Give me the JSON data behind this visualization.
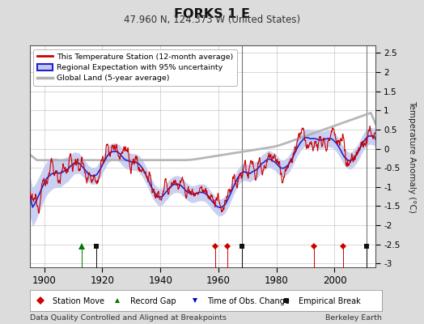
{
  "title": "FORKS 1 E",
  "subtitle": "47.960 N, 124.373 W (United States)",
  "ylabel": "Temperature Anomaly (°C)",
  "xlabel_note": "Data Quality Controlled and Aligned at Breakpoints",
  "credit": "Berkeley Earth",
  "xlim": [
    1895,
    2014
  ],
  "ylim": [
    -3.1,
    2.7
  ],
  "yticks": [
    -3,
    -2.5,
    -2,
    -1.5,
    -1,
    -0.5,
    0,
    0.5,
    1,
    1.5,
    2,
    2.5
  ],
  "xticks": [
    1900,
    1920,
    1940,
    1960,
    1980,
    2000
  ],
  "bg_color": "#dcdcdc",
  "plot_bg_color": "#ffffff",
  "grid_color": "#b0b0b0",
  "station_color": "#cc0000",
  "regional_color": "#2222cc",
  "uncertainty_color": "#c0c8f0",
  "global_color": "#b0b0b0",
  "station_move_color": "#cc0000",
  "record_gap_color": "#007700",
  "tobs_color": "#0000cc",
  "break_color": "#111111",
  "legend_station": "This Temperature Station (12-month average)",
  "legend_regional": "Regional Expectation with 95% uncertainty",
  "legend_global": "Global Land (5-year average)",
  "legend_station_move": "Station Move",
  "legend_record_gap": "Record Gap",
  "legend_tobs": "Time of Obs. Change",
  "legend_break": "Empirical Break",
  "station_moves": [
    1959,
    1963,
    1993,
    2003
  ],
  "record_gaps": [
    1913
  ],
  "tobs_changes": [],
  "empirical_breaks": [
    1918,
    1968,
    2011
  ],
  "vlines": [
    1968,
    2011
  ],
  "seed": 12345
}
